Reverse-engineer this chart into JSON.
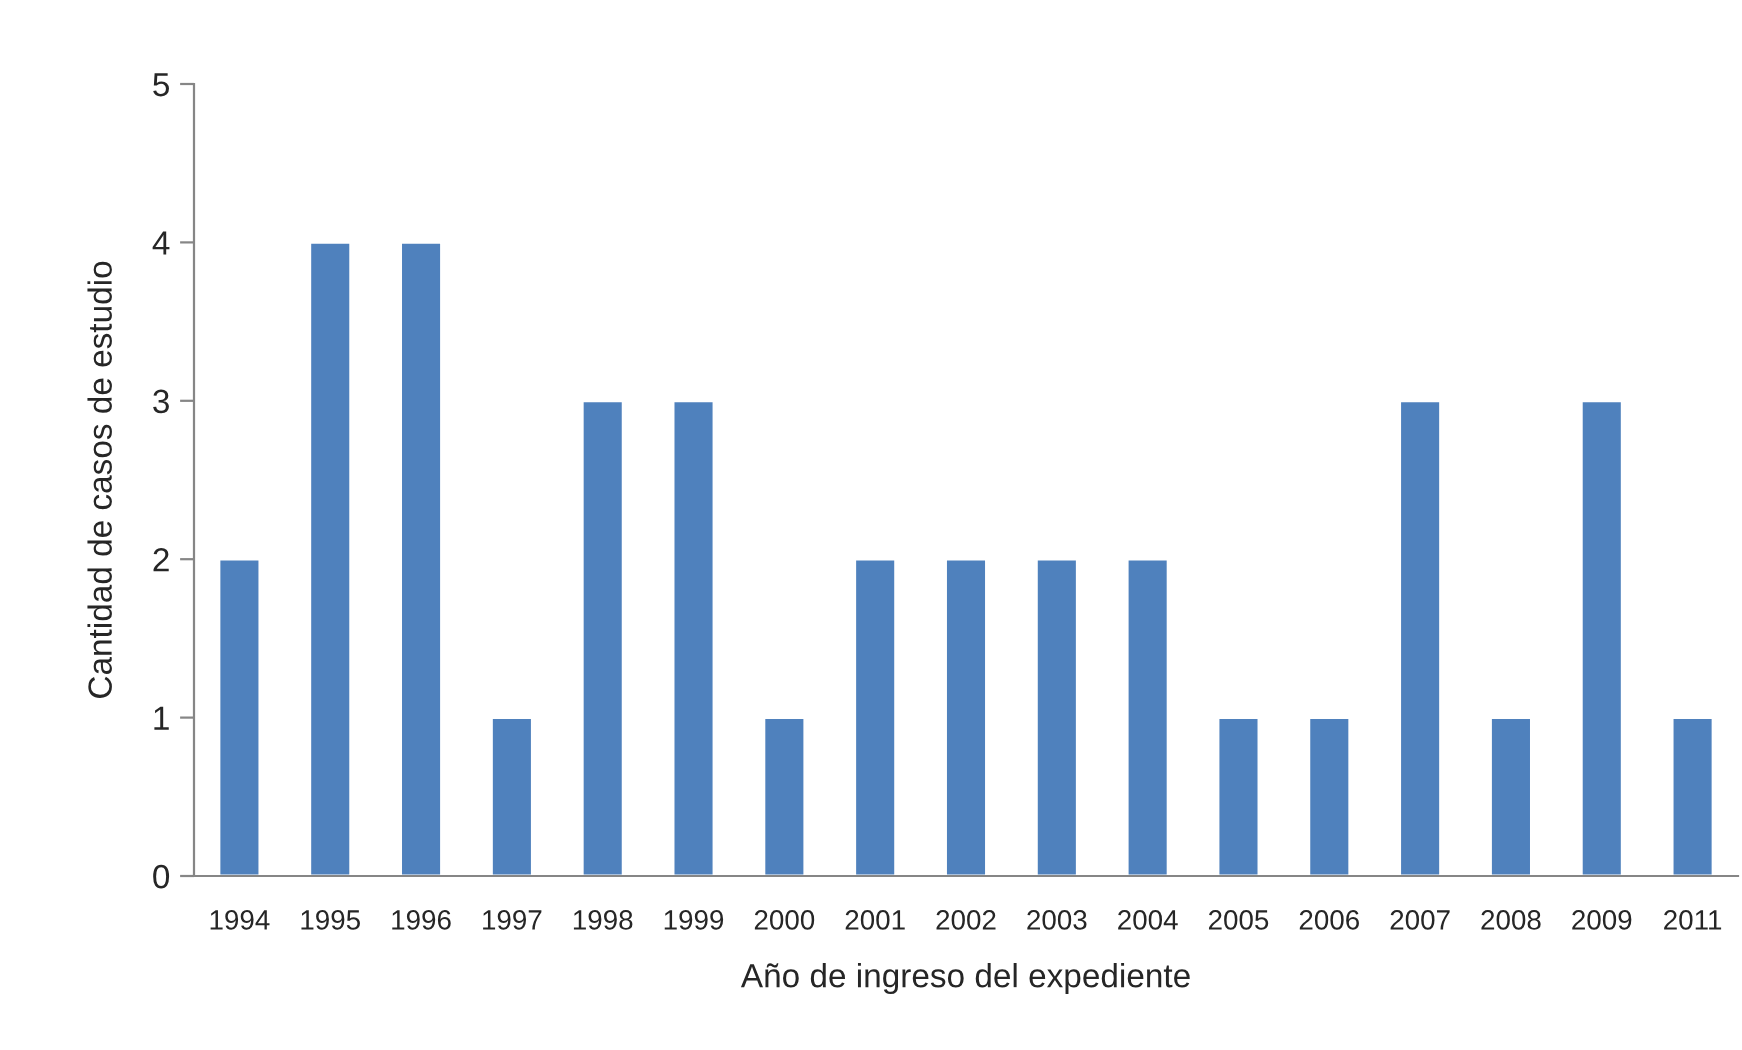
{
  "chart_data": {
    "type": "bar",
    "xlabel": "Año de ingreso del expediente",
    "ylabel": "Cantidad de casos de estudio",
    "categories": [
      "1994",
      "1995",
      "1996",
      "1997",
      "1998",
      "1999",
      "2000",
      "2001",
      "2002",
      "2003",
      "2004",
      "2005",
      "2006",
      "2007",
      "2008",
      "2009",
      "2011"
    ],
    "values": [
      2,
      4,
      4,
      1,
      3,
      3,
      1,
      2,
      2,
      2,
      2,
      1,
      1,
      3,
      1,
      3,
      1
    ],
    "color": "#4f81bd",
    "ylim": [
      0,
      5
    ],
    "yticks": [
      0,
      1,
      2,
      3,
      4,
      5
    ],
    "grid": false,
    "legend": false
  }
}
